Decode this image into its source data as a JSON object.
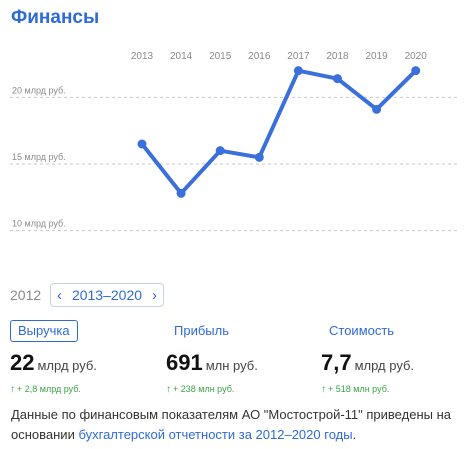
{
  "header": {
    "title": "Финансы"
  },
  "chart_data": {
    "type": "line",
    "x": [
      "2013",
      "2014",
      "2015",
      "2016",
      "2017",
      "2018",
      "2019",
      "2020"
    ],
    "values": [
      16.5,
      12.8,
      16.0,
      15.5,
      22.0,
      21.4,
      19.1,
      22.0
    ],
    "ylim": [
      9,
      24
    ],
    "yticks": [
      {
        "value": 20,
        "label": "20 млрд руб."
      },
      {
        "value": 15,
        "label": "15 млрд руб."
      },
      {
        "value": 10,
        "label": "10 млрд руб."
      }
    ],
    "grid": true,
    "line_color": "#3a6fdc"
  },
  "period": {
    "previous_year": "2012",
    "range_label": "2013–2020",
    "prev_icon": "chevron-left-icon",
    "next_icon": "chevron-right-icon"
  },
  "metrics": [
    {
      "label": "Выручка",
      "value": "22",
      "unit": "млрд руб.",
      "change": "+ 2,8 млрд руб.",
      "active": true
    },
    {
      "label": "Прибыль",
      "value": "691",
      "unit": "млн руб.",
      "change": "+ 238 млн руб.",
      "active": false
    },
    {
      "label": "Стоимость",
      "value": "7,7",
      "unit": "млрд руб.",
      "change": "+ 518 млн руб.",
      "active": false
    }
  ],
  "note": {
    "text_before": "Данные по финансовым показателям АО \"Мостострой-11\" приведены на основании ",
    "link_text": "бухгалтерской отчетности за 2012–2020 годы",
    "text_after": "."
  },
  "colors": {
    "accent": "#2f6ad9",
    "positive": "#3aa447"
  }
}
